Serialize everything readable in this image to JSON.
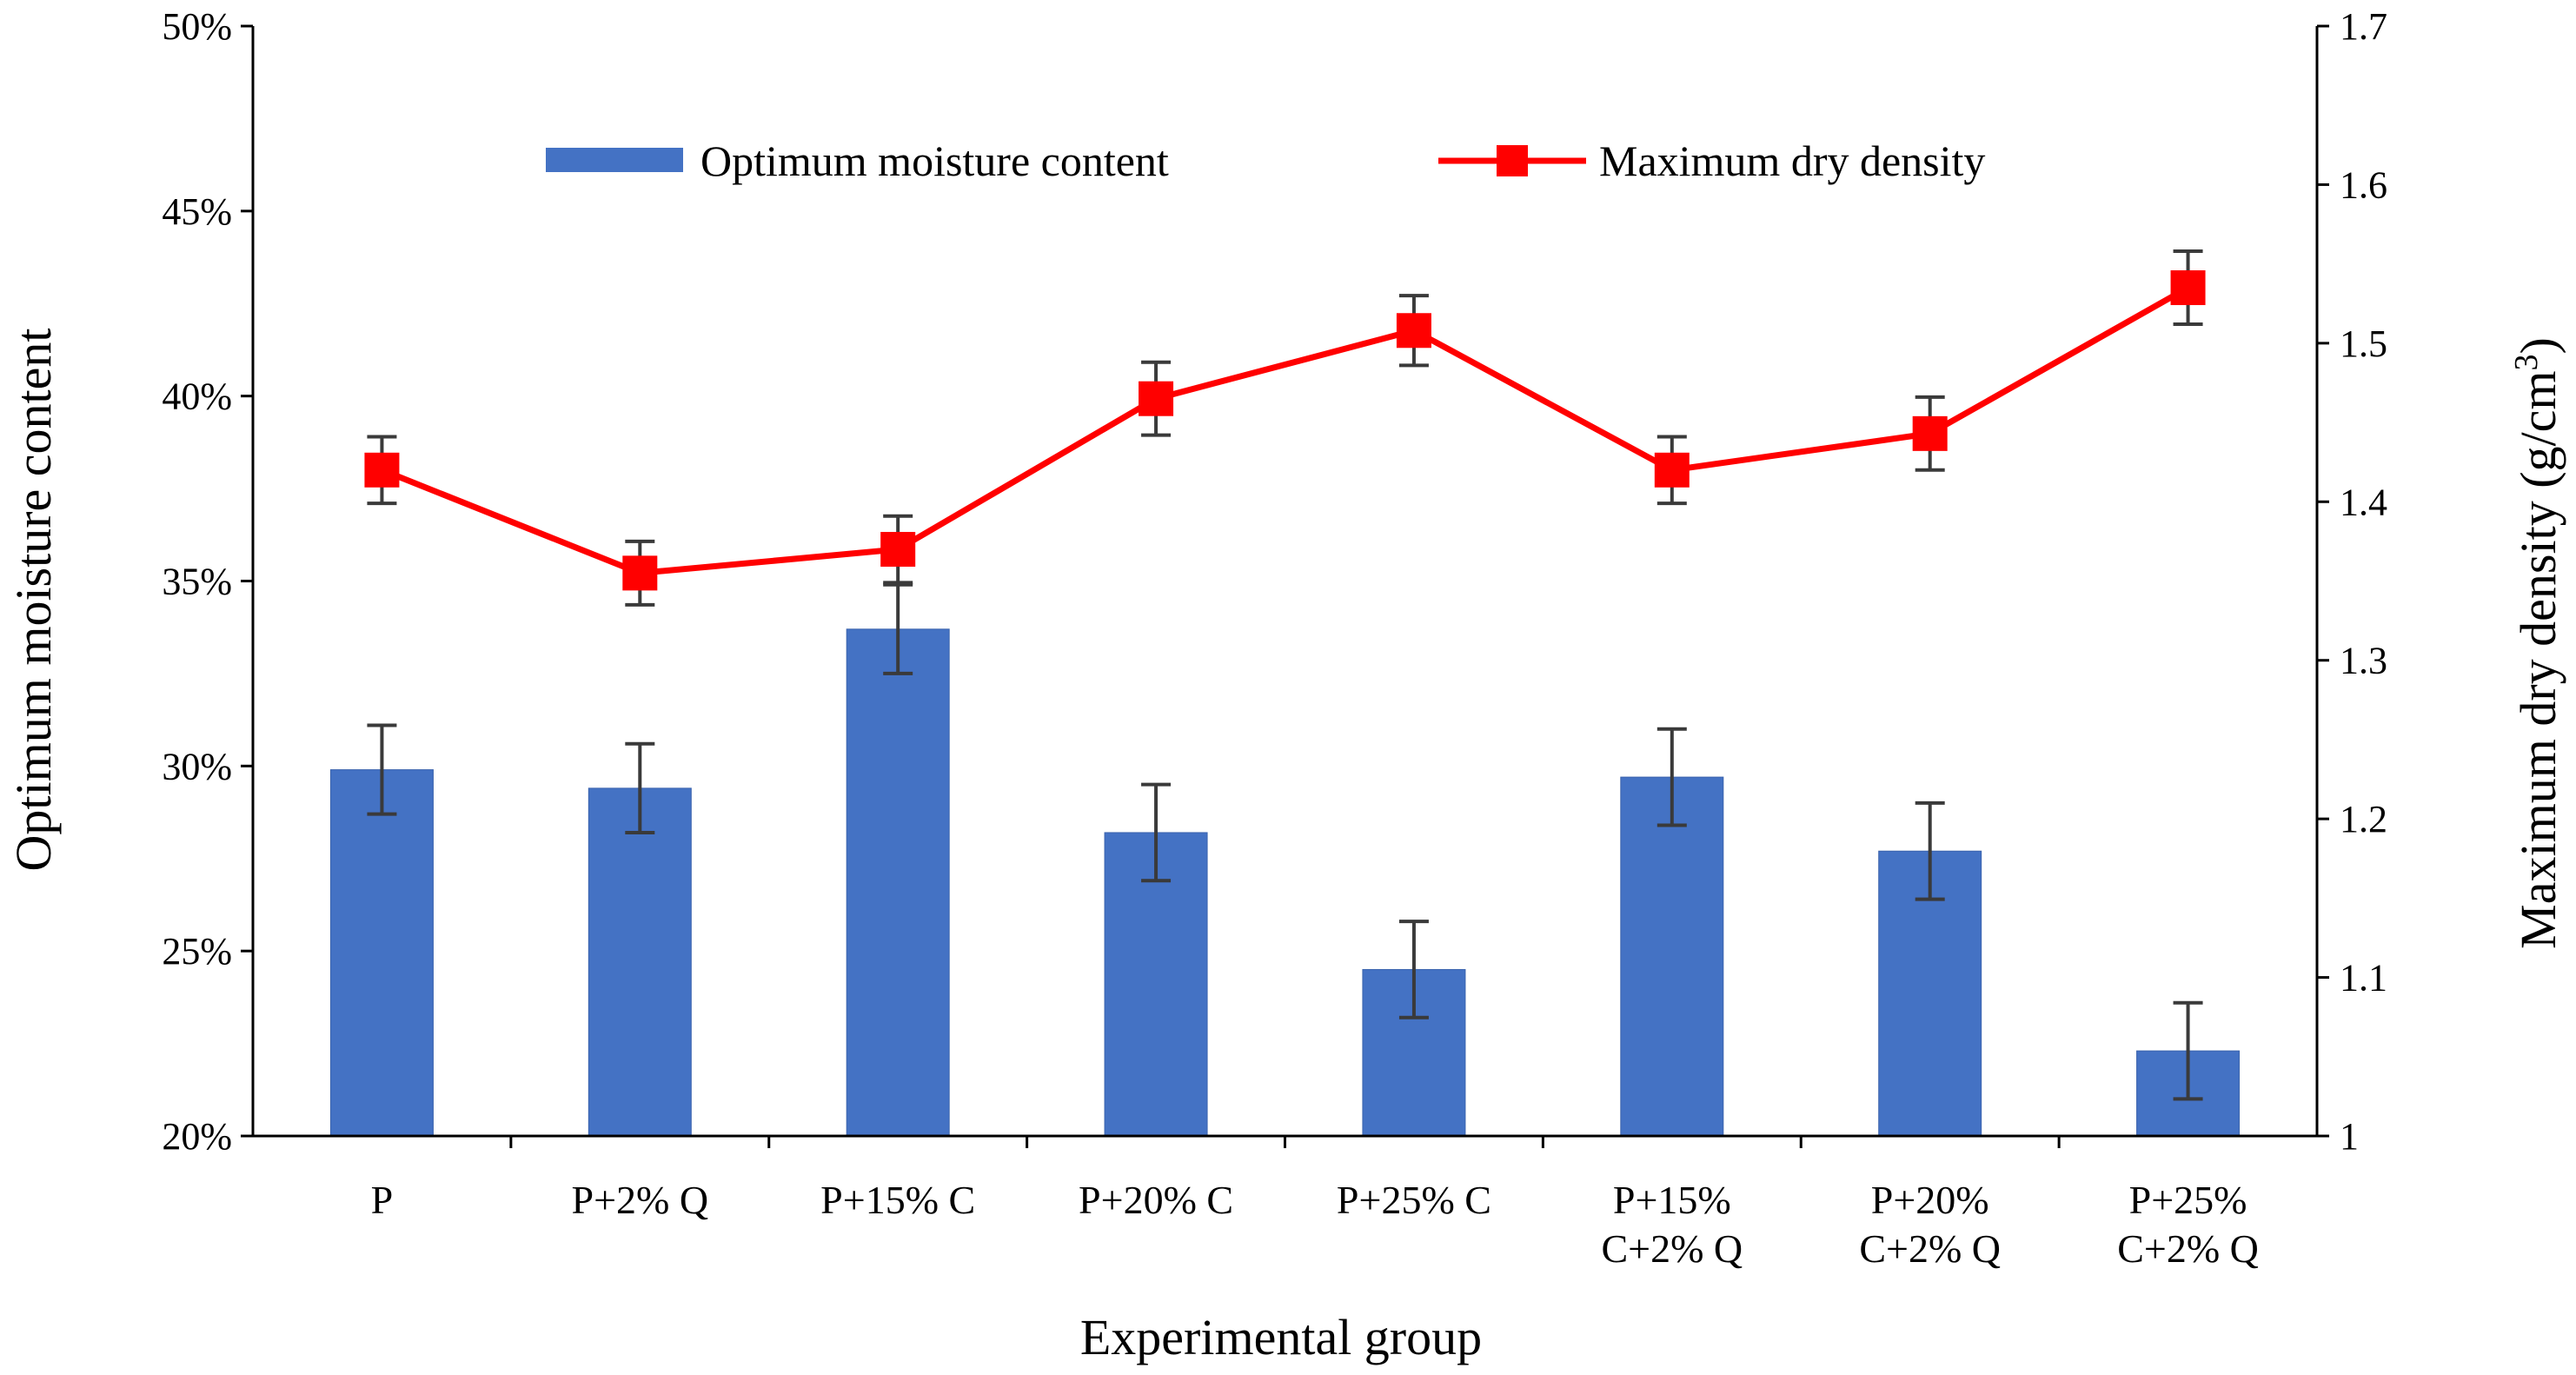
{
  "chart_data": {
    "type": "bar+line",
    "xlabel": "Experimental group",
    "ylabel_left": "Optimum moisture content",
    "ylabel_right_prefix": "Maximum dry density (g/cm",
    "ylabel_right_sup": "3",
    "ylabel_right_suffix": ")",
    "categories": [
      [
        "P"
      ],
      [
        "P+2% Q"
      ],
      [
        "P+15% C"
      ],
      [
        "P+20% C"
      ],
      [
        "P+25% C"
      ],
      [
        "P+15%",
        "C+2% Q"
      ],
      [
        "P+20%",
        "C+2% Q"
      ],
      [
        "P+25%",
        "C+2% Q"
      ]
    ],
    "left_axis": {
      "ylim": [
        20,
        50
      ],
      "ticks": [
        20,
        25,
        30,
        35,
        40,
        45,
        50
      ],
      "tick_labels": [
        "20%",
        "25%",
        "30%",
        "35%",
        "40%",
        "45%",
        "50%"
      ]
    },
    "right_axis": {
      "ylim": [
        1.0,
        1.7
      ],
      "ticks": [
        1.0,
        1.1,
        1.2,
        1.3,
        1.4,
        1.5,
        1.6,
        1.7
      ],
      "tick_labels": [
        "1",
        "1.1",
        "1.2",
        "1.3",
        "1.4",
        "1.5",
        "1.6",
        "1.7"
      ]
    },
    "series": [
      {
        "name": "Optimum moisture content",
        "type": "bar",
        "axis": "left",
        "color": "#4472C4",
        "values": [
          29.9,
          29.4,
          33.7,
          28.2,
          24.5,
          29.7,
          27.7,
          22.3
        ],
        "errors": [
          1.2,
          1.2,
          1.2,
          1.3,
          1.3,
          1.3,
          1.3,
          1.3
        ]
      },
      {
        "name": "Maximum dry density",
        "type": "line",
        "axis": "right",
        "color": "#FF0000",
        "values": [
          1.42,
          1.355,
          1.37,
          1.465,
          1.508,
          1.42,
          1.443,
          1.535
        ],
        "errors": [
          0.021,
          0.02,
          0.021,
          0.023,
          0.022,
          0.021,
          0.023,
          0.023
        ]
      }
    ],
    "error_bar_color": "#3a3a3a",
    "legend_position": "top-center"
  }
}
